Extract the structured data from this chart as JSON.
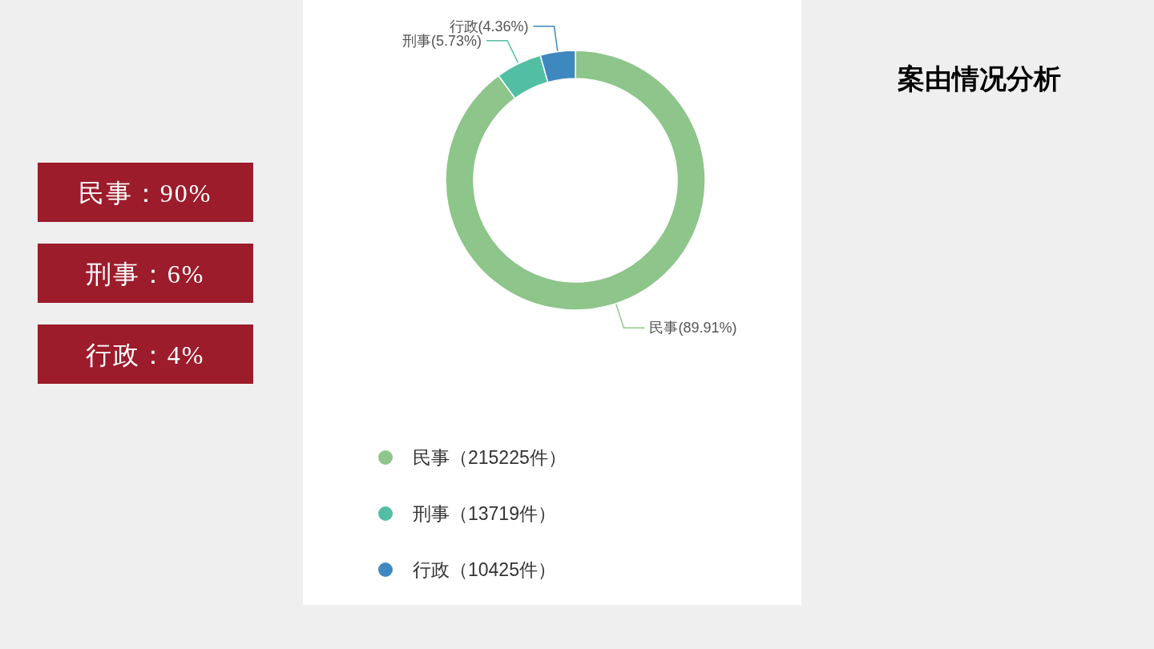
{
  "chart_data": [
    {
      "type": "other",
      "annotations": [
        "民事：90%",
        "刑事：6%",
        "行政：4%"
      ]
    },
    {
      "type": "donut",
      "title": "案由情况分析",
      "categories": [
        "民事（215225件）",
        "刑事（13719件）",
        "行政（10425件）"
      ],
      "values": [
        215225,
        13719,
        10425
      ],
      "colors": [
        "#8ec58a",
        "#52bfa4",
        "#3e88c0"
      ],
      "value_labels": [
        "民事(89.91%)",
        "刑事(5.73%)",
        "行政(4.36%)"
      ],
      "legend": "bottom"
    }
  ]
}
